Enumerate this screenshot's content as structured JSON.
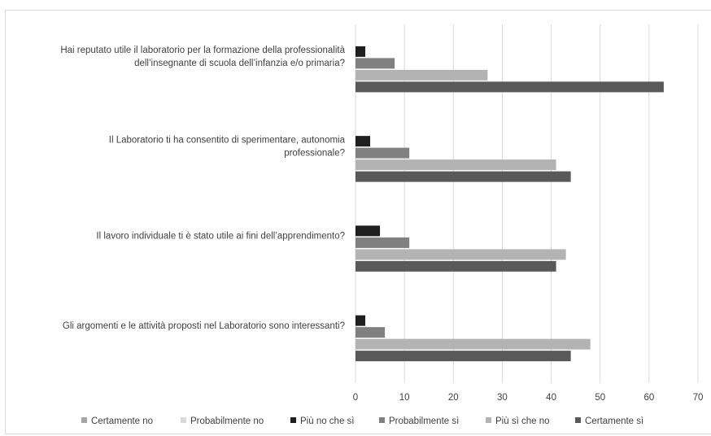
{
  "chart_data": {
    "type": "bar",
    "orientation": "horizontal",
    "xlim": [
      0,
      70
    ],
    "ticks": [
      "0",
      "10",
      "20",
      "30",
      "40",
      "50",
      "60",
      "70"
    ],
    "grid": true,
    "legend_position": "bottom",
    "categories": [
      {
        "lines": [
          "Hai reputato utile il laboratorio per la formazione della professionalità",
          "dell’insegnante di scuola dell’infanzia e/o primaria?"
        ],
        "values": {
          "Più no che sì": 2,
          "Probabilmente sì": 8,
          "Più sì che no": 27,
          "Certamente sì": 63
        }
      },
      {
        "lines": [
          "Il Laboratorio ti ha consentito di sperimentare, autonomia",
          "professionale?"
        ],
        "values": {
          "Più no che sì": 3,
          "Probabilmente sì": 11,
          "Più sì che no": 41,
          "Certamente sì": 44
        }
      },
      {
        "lines": [
          "Il lavoro individuale ti è stato utile ai fini dell’apprendimento?"
        ],
        "values": {
          "Più no che sì": 5,
          "Probabilmente sì": 11,
          "Più sì che no": 43,
          "Certamente sì": 41
        }
      },
      {
        "lines": [
          "Gli argomenti e le attività proposti nel Laboratorio sono interessanti?"
        ],
        "values": {
          "Più no che sì": 2,
          "Probabilmente sì": 6,
          "Più sì che no": 48,
          "Certamente sì": 44
        }
      }
    ],
    "legend": [
      {
        "name": "Certamente no",
        "color": "#a6a6a6"
      },
      {
        "name": "Probabilmente no",
        "color": "#d9d9d9"
      },
      {
        "name": "Più no che sì",
        "color": "#1f1f1f"
      },
      {
        "name": "Probabilmente sì",
        "color": "#808080"
      },
      {
        "name": "Più sì che no",
        "color": "#b3b3b3"
      },
      {
        "name": "Certamente sì",
        "color": "#595959"
      }
    ],
    "bar_series": [
      "Più no che sì",
      "Probabilmente sì",
      "Più sì che no",
      "Certamente sì"
    ]
  }
}
